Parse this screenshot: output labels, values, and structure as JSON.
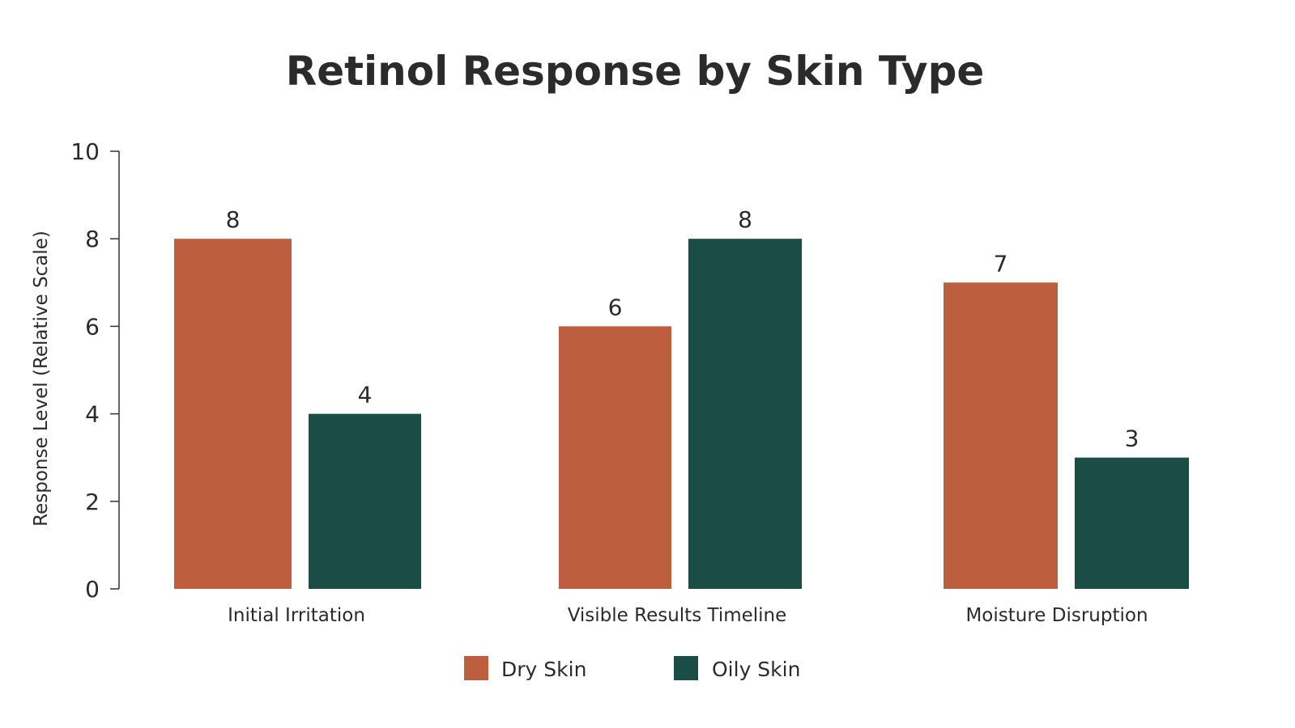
{
  "chart_data": {
    "type": "bar",
    "title": "Retinol Response by Skin Type",
    "xlabel": "",
    "ylabel": "Response Level (Relative Scale)",
    "ylim": [
      0,
      10
    ],
    "yticks": [
      0,
      2,
      4,
      6,
      8,
      10
    ],
    "grid": false,
    "legend_position": "bottom-center",
    "categories": [
      "Initial Irritation",
      "Visible Results Timeline",
      "Moisture Disruption"
    ],
    "series": [
      {
        "name": "Dry Skin",
        "color": "#bd5f3e",
        "values": [
          8,
          6,
          7
        ]
      },
      {
        "name": "Oily Skin",
        "color": "#1b4d47",
        "values": [
          4,
          8,
          3
        ]
      }
    ]
  }
}
